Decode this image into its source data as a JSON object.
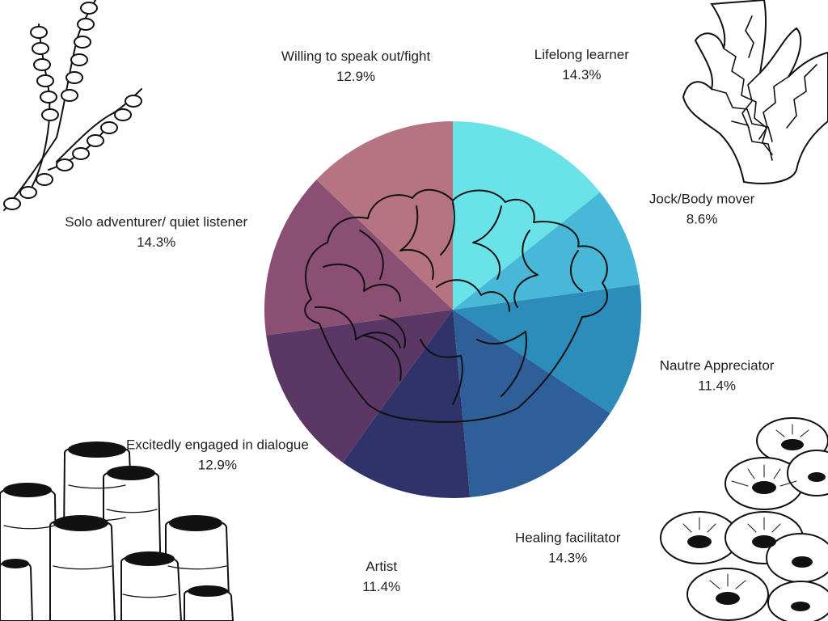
{
  "chart_data": {
    "type": "pie",
    "title": "",
    "start_angle_deg": 0,
    "direction": "clockwise",
    "slices": [
      {
        "label": "Lifelong learner",
        "value": 14.3,
        "value_label": "14.3%",
        "color": "#69e3e8"
      },
      {
        "label": "Jock/Body mover",
        "value": 8.6,
        "value_label": "8.6%",
        "color": "#47b8d8"
      },
      {
        "label": "Nautre Appreciator",
        "value": 11.4,
        "value_label": "11.4%",
        "color": "#2c8cba"
      },
      {
        "label": "Healing facilitator",
        "value": 14.3,
        "value_label": "14.3%",
        "color": "#2f5f98"
      },
      {
        "label": "Artist",
        "value": 11.4,
        "value_label": "11.4%",
        "color": "#2f336a"
      },
      {
        "label": "Excitedly engaged in dialogue",
        "value": 12.9,
        "value_label": "12.9%",
        "color": "#5b3766"
      },
      {
        "label": "Solo adventurer/ quiet listener",
        "value": 14.3,
        "value_label": "14.3%",
        "color": "#8a4f72"
      },
      {
        "label": "Willing to speak out/fight",
        "value": 12.9,
        "value_label": "12.9%",
        "color": "#b67382"
      }
    ],
    "legend": "none",
    "decorations": [
      "coral-center-icon",
      "seaweed-top-left-icon",
      "coral-branch-top-right-icon",
      "tube-sponge-bottom-left-icon",
      "anemone-bottom-right-icon"
    ]
  }
}
